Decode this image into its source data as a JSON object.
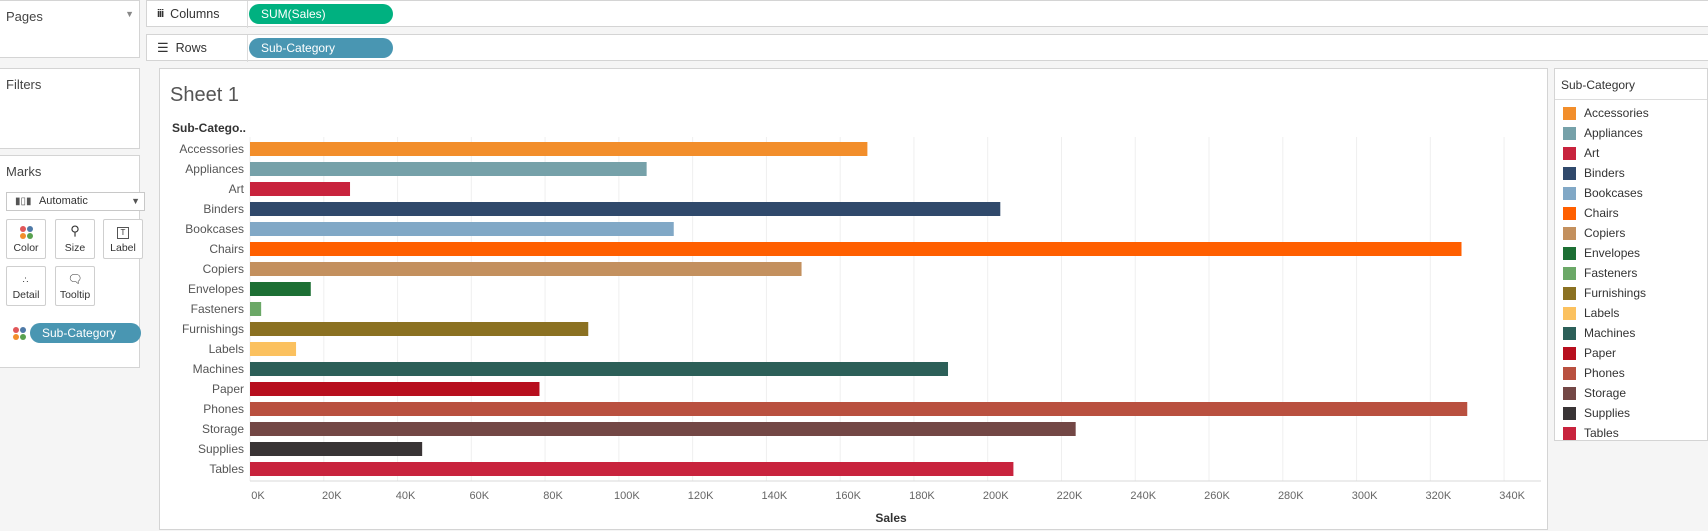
{
  "pages": {
    "title": "Pages"
  },
  "shelves": {
    "columns_label": "Columns",
    "columns_pill": "SUM(Sales)",
    "rows_label": "Rows",
    "rows_pill": "Sub-Category"
  },
  "filters": {
    "title": "Filters"
  },
  "marks": {
    "title": "Marks",
    "mark_type": "Automatic",
    "cards": [
      {
        "label": "Color",
        "icon": "color-dots-icon"
      },
      {
        "label": "Size",
        "icon": "size-icon"
      },
      {
        "label": "Label",
        "icon": "label-icon"
      },
      {
        "label": "Detail",
        "icon": "detail-icon"
      },
      {
        "label": "Tooltip",
        "icon": "tooltip-icon"
      }
    ],
    "color_pill": "Sub-Category"
  },
  "sheet": {
    "title": "Sheet 1"
  },
  "legend": {
    "title": "Sub-Category"
  },
  "chart_data": {
    "type": "bar",
    "orientation": "horizontal",
    "row_header": "Sub-Catego..",
    "xlabel": "Sales",
    "xlim": [
      0,
      350000
    ],
    "x_ticks": [
      0,
      20000,
      40000,
      60000,
      80000,
      100000,
      120000,
      140000,
      160000,
      180000,
      200000,
      220000,
      240000,
      260000,
      280000,
      300000,
      320000,
      340000
    ],
    "x_tick_labels": [
      "0K",
      "20K",
      "40K",
      "60K",
      "80K",
      "100K",
      "120K",
      "140K",
      "160K",
      "180K",
      "200K",
      "220K",
      "240K",
      "260K",
      "280K",
      "300K",
      "320K",
      "340K"
    ],
    "grid": "vertical",
    "categories": [
      "Accessories",
      "Appliances",
      "Art",
      "Binders",
      "Bookcases",
      "Chairs",
      "Copiers",
      "Envelopes",
      "Fasteners",
      "Furnishings",
      "Labels",
      "Machines",
      "Paper",
      "Phones",
      "Storage",
      "Supplies",
      "Tables"
    ],
    "values": [
      167380,
      107532,
      27119,
      203413,
      114880,
      328449,
      149528,
      16476,
      3024,
      91705,
      12486,
      189239,
      78479,
      330007,
      223844,
      46674,
      206966
    ],
    "colors": [
      "#f28e2b",
      "#76a1a9",
      "#c8233d",
      "#30496b",
      "#81a8c6",
      "#ff5f00",
      "#c3905e",
      "#1d6f34",
      "#6ba867",
      "#8b7122",
      "#fbc15f",
      "#2c5f58",
      "#b70f1e",
      "#b9503f",
      "#734745",
      "#393435",
      "#c8233d"
    ]
  }
}
